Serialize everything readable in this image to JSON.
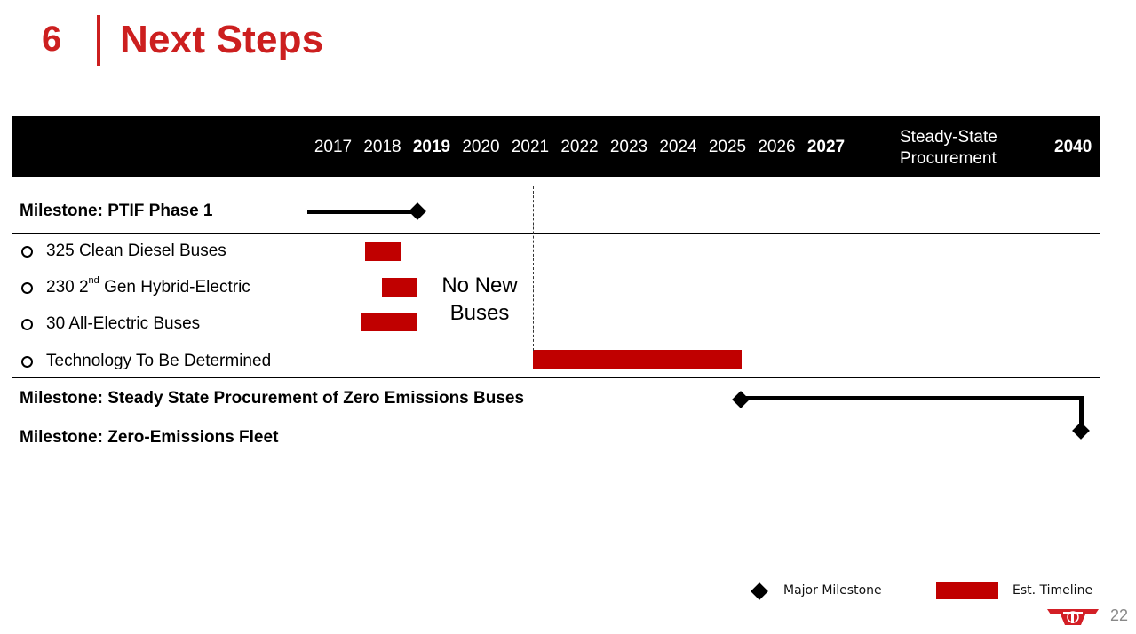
{
  "header": {
    "section_number": "6",
    "title": "Next Steps"
  },
  "timeline_header": {
    "years": [
      {
        "label": "2017",
        "bold": false
      },
      {
        "label": "2018",
        "bold": false
      },
      {
        "label": "2019",
        "bold": true
      },
      {
        "label": "2020",
        "bold": false
      },
      {
        "label": "2021",
        "bold": false
      },
      {
        "label": "2022",
        "bold": false
      },
      {
        "label": "2023",
        "bold": false
      },
      {
        "label": "2024",
        "bold": false
      },
      {
        "label": "2025",
        "bold": false
      },
      {
        "label": "2026",
        "bold": false
      },
      {
        "label": "2027",
        "bold": true
      }
    ],
    "steady_state": "Steady-State\nProcurement",
    "final_year": "2040"
  },
  "rows": {
    "milestone_ptif": "Milestone: PTIF Phase 1",
    "item1": "325 Clean Diesel Buses",
    "item2_prefix": "230 2",
    "item2_sup": "nd",
    "item2_suffix": " Gen Hybrid-Electric",
    "item3": "30 All-Electric Buses",
    "item4": "Technology To Be Determined",
    "milestone_steady": "Milestone: Steady State Procurement of Zero Emissions Buses",
    "milestone_fleet": "Milestone: Zero-Emissions Fleet"
  },
  "annotation": {
    "no_new_buses": "No New\nBuses"
  },
  "legend": {
    "major_milestone": "Major Milestone",
    "est_timeline": "Est. Timeline"
  },
  "colors": {
    "accent_red": "#cc1f1f",
    "bar_red": "#c00000",
    "header_black": "#000000"
  },
  "page_number": "22"
}
